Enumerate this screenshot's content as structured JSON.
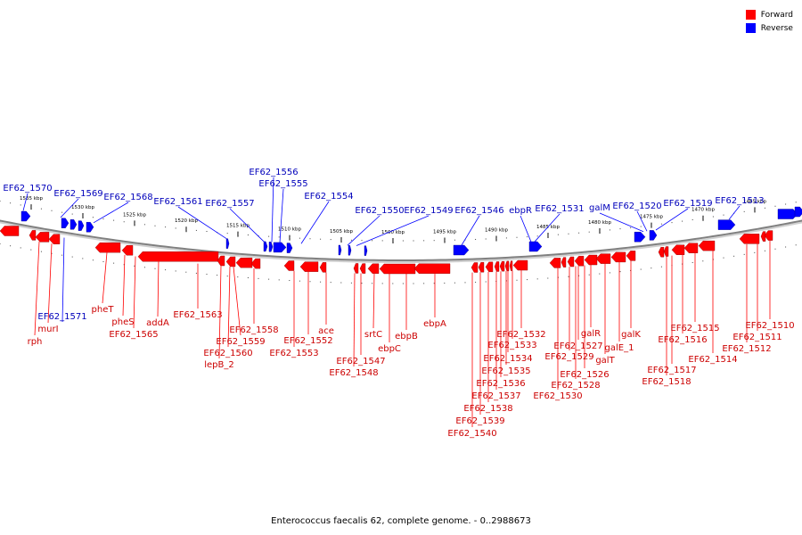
{
  "legend": {
    "forward": "Forward",
    "reverse": "Reverse"
  },
  "colors": {
    "forward": "#ff0000",
    "reverse": "#0000ff",
    "forward_label": "#cc0000",
    "reverse_label": "#0000bb",
    "backbone": "#808080"
  },
  "caption": "Enterococcus faecalis 62, complete genome. - 0..2988673",
  "scale_ticks": [
    {
      "label": "1535 kbp",
      "kbp": 1535
    },
    {
      "label": "1530 kbp",
      "kbp": 1530
    },
    {
      "label": "1525 kbp",
      "kbp": 1525
    },
    {
      "label": "1520 kbp",
      "kbp": 1520
    },
    {
      "label": "1515 kbp",
      "kbp": 1515
    },
    {
      "label": "1510 kbp",
      "kbp": 1510
    },
    {
      "label": "1505 kbp",
      "kbp": 1505
    },
    {
      "label": "1500 kbp",
      "kbp": 1500
    },
    {
      "label": "1495 kbp",
      "kbp": 1495
    },
    {
      "label": "1490 kbp",
      "kbp": 1490
    },
    {
      "label": "1485 kbp",
      "kbp": 1485
    },
    {
      "label": "1480 kbp",
      "kbp": 1480
    },
    {
      "label": "1475 kbp",
      "kbp": 1475
    },
    {
      "label": "1470 kbp",
      "kbp": 1470
    },
    {
      "label": "1465 kbp",
      "kbp": 1465
    }
  ],
  "reverse_labels": [
    "EF62_1570",
    "EF62_1569",
    "EF62_1568",
    "EF62_1561",
    "EF62_1557",
    "EF62_1556",
    "EF62_1555",
    "EF62_1554",
    "EF62_1550",
    "EF62_1549",
    "EF62_1546",
    "ebpR",
    "EF62_1531",
    "galM",
    "EF62_1520",
    "EF62_1519",
    "EF62_1513",
    "EF62_1571"
  ],
  "forward_labels": [
    "rph",
    "murI",
    "pheT",
    "pheS",
    "EF62_1565",
    "addA",
    "EF62_1563",
    "lepB_2",
    "EF62_1560",
    "EF62_1559",
    "EF62_1558",
    "EF62_1553",
    "EF62_1552",
    "ace",
    "EF62_1548",
    "EF62_1547",
    "srtC",
    "ebpC",
    "ebpB",
    "ebpA",
    "EF62_1540",
    "EF62_1539",
    "EF62_1538",
    "EF62_1537",
    "EF62_1536",
    "EF62_1535",
    "EF62_1534",
    "EF62_1533",
    "EF62_1532",
    "EF62_1530",
    "EF62_1528",
    "EF62_1526",
    "EF62_1529",
    "EF62_1527",
    "galR",
    "galT",
    "galE_1",
    "galK",
    "EF62_1518",
    "EF62_1517",
    "EF62_1516",
    "EF62_1515",
    "EF62_1514",
    "EF62_1512",
    "EF62_1511",
    "EF62_1510"
  ]
}
